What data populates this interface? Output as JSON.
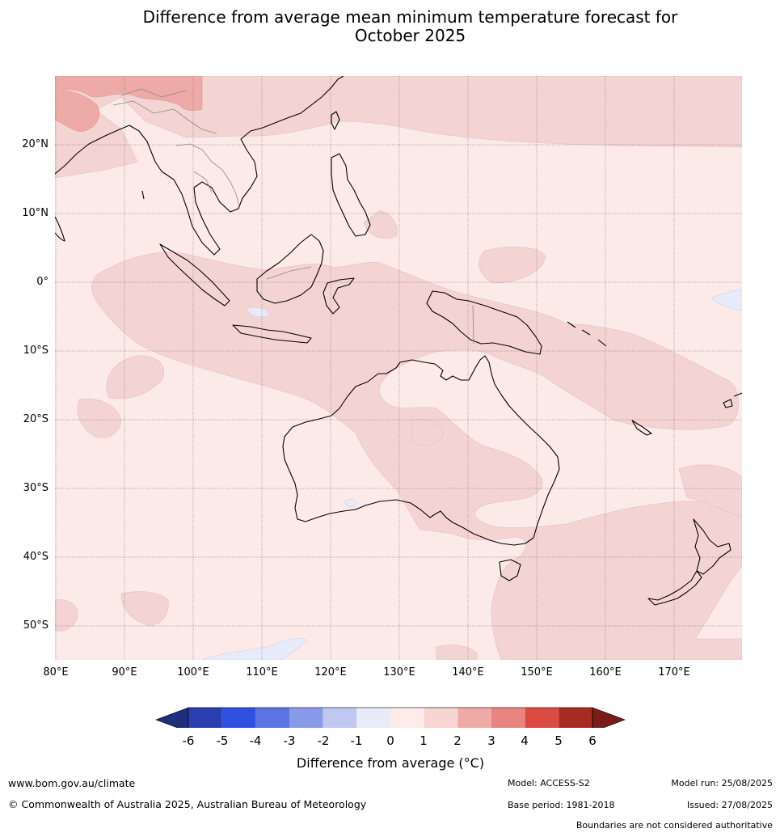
{
  "title": {
    "line1": "Difference from average mean minimum temperature forecast for",
    "line2": "October 2025"
  },
  "map": {
    "lat_labels": [
      "20°N",
      "10°N",
      "0°",
      "10°S",
      "20°S",
      "30°S",
      "40°S",
      "50°S"
    ],
    "lon_labels": [
      "80°E",
      "90°E",
      "100°E",
      "110°E",
      "120°E",
      "130°E",
      "140°E",
      "150°E",
      "160°E",
      "170°E"
    ],
    "colors": {
      "zero_to_one": "#fbeae8",
      "one_to_two": "#f4d4d2",
      "two_to_three": "#edaaa6",
      "minus_one_to_zero": "#e8ecfa",
      "coastline": "#000000",
      "borders": "#888888",
      "grid": "#7a6a6a"
    }
  },
  "colorbar": {
    "ticks": [
      "-6",
      "-5",
      "-4",
      "-3",
      "-2",
      "-1",
      "0",
      "1",
      "2",
      "3",
      "4",
      "5",
      "6"
    ],
    "under_color": "#1f2d7a",
    "over_color": "#7a1c1a",
    "segment_colors": [
      "#2a3eaf",
      "#3050e0",
      "#5c73e2",
      "#8a9aea",
      "#c0c8f2",
      "#e8ebfa",
      "#fdecea",
      "#f6d5d2",
      "#efaaa6",
      "#e88580",
      "#dc4b42",
      "#a82b22"
    ],
    "label": "Difference from average (°C)"
  },
  "footer": {
    "website": "www.bom.gov.au/climate",
    "copyright": "© Commonwealth of Australia 2025, Australian Bureau of Meteorology",
    "model": "Model: ACCESS-S2",
    "base_period": "Base period: 1981-2018",
    "model_run": "Model run: 25/08/2025",
    "issued": "Issued: 27/08/2025",
    "disclaimer": "Boundaries are not considered authoritative"
  }
}
